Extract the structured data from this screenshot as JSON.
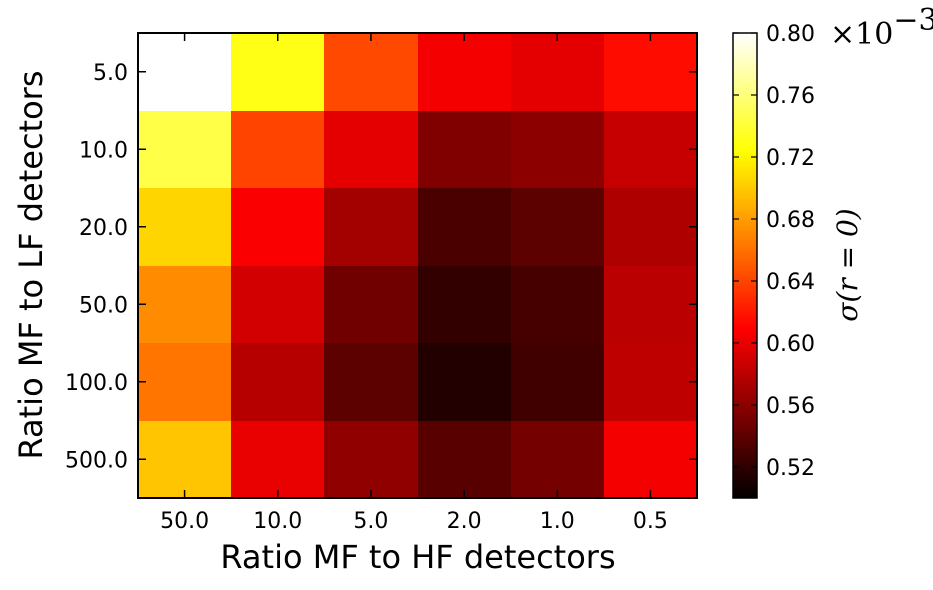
{
  "chart_data": {
    "type": "heatmap",
    "xlabel": "Ratio MF to HF detectors",
    "ylabel": "Ratio MF to LF detectors",
    "x_categories": [
      "50.0",
      "10.0",
      "5.0",
      "2.0",
      "1.0",
      "0.5"
    ],
    "y_categories": [
      "5.0",
      "10.0",
      "20.0",
      "50.0",
      "100.0",
      "500.0"
    ],
    "values": [
      [
        0.8,
        0.73,
        0.642,
        0.605,
        0.598,
        0.615
      ],
      [
        0.745,
        0.64,
        0.598,
        0.555,
        0.56,
        0.585
      ],
      [
        0.705,
        0.608,
        0.57,
        0.532,
        0.54,
        0.575
      ],
      [
        0.672,
        0.59,
        0.548,
        0.522,
        0.53,
        0.58
      ],
      [
        0.662,
        0.578,
        0.54,
        0.515,
        0.528,
        0.582
      ],
      [
        0.698,
        0.6,
        0.562,
        0.538,
        0.55,
        0.605
      ]
    ],
    "colormap": "hot",
    "colorbar": {
      "label": "σ(r = 0)",
      "multiplier": "×10",
      "multiplier_exponent": "−3",
      "range": [
        0.5,
        0.8
      ],
      "ticks": [
        "0.52",
        "0.56",
        "0.60",
        "0.64",
        "0.68",
        "0.72",
        "0.76",
        "0.80"
      ]
    }
  }
}
